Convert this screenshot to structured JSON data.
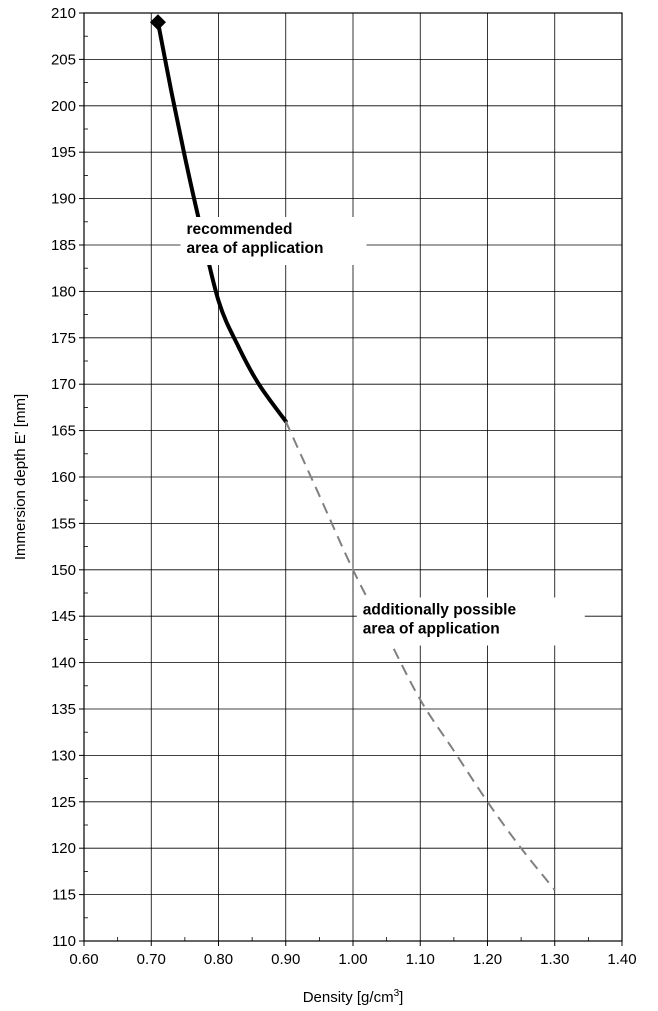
{
  "chart_data": {
    "type": "line",
    "title": "",
    "xlabel": "Density [g/cm",
    "xlabel_sup": "3",
    "xlabel_end": "]",
    "ylabel": "Immersion depth E' [mm]",
    "xlim": [
      0.6,
      1.4
    ],
    "ylim": [
      110,
      210
    ],
    "x_ticks": [
      "0.60",
      "0.70",
      "0.80",
      "0.90",
      "1.00",
      "1.10",
      "1.20",
      "1.30",
      "1.40"
    ],
    "y_ticks": [
      "110",
      "115",
      "120",
      "125",
      "130",
      "135",
      "140",
      "145",
      "150",
      "155",
      "160",
      "165",
      "170",
      "175",
      "180",
      "185",
      "190",
      "195",
      "200",
      "205",
      "210"
    ],
    "grid": true,
    "series": [
      {
        "style": "solid",
        "color": "#000000",
        "x": [
          0.71,
          0.73,
          0.75,
          0.77,
          0.8,
          0.83,
          0.86,
          0.9
        ],
        "y": [
          209,
          201.5,
          194.5,
          188,
          179,
          174,
          170,
          166
        ]
      },
      {
        "style": "dashed",
        "color": "#808080",
        "x": [
          0.9,
          0.95,
          1.0,
          1.05,
          1.1,
          1.15,
          1.2,
          1.25,
          1.3
        ],
        "y": [
          166,
          158,
          150,
          143,
          136,
          130.5,
          125,
          120,
          115.5
        ]
      }
    ],
    "markers": [
      {
        "shape": "diamond",
        "x": 0.71,
        "y": 209,
        "color": "#000000"
      }
    ],
    "annotations": [
      {
        "lines": [
          "recommended",
          "area of application"
        ],
        "x": 0.8,
        "y": 185
      },
      {
        "lines": [
          "additionally possible",
          "area of application"
        ],
        "x": 1.08,
        "y": 144
      }
    ]
  }
}
